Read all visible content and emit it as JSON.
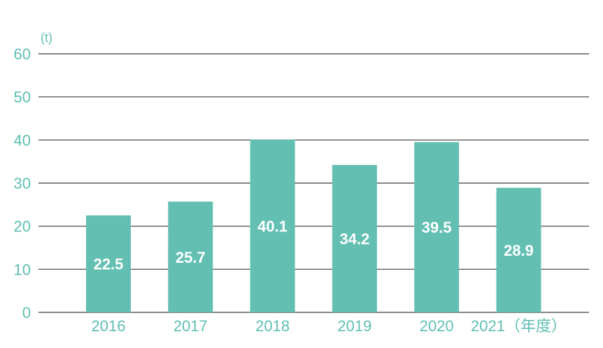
{
  "chart_data": {
    "type": "bar",
    "title": "",
    "xlabel": "",
    "ylabel": "(t)",
    "categories": [
      "2016",
      "2017",
      "2018",
      "2019",
      "2020",
      "2021（年度）"
    ],
    "values": [
      22.5,
      25.7,
      40.1,
      34.2,
      39.5,
      28.9
    ],
    "value_labels": [
      "22.5",
      "25.7",
      "40.1",
      "34.2",
      "39.5",
      "28.9"
    ],
    "ylim": [
      0,
      60
    ],
    "yticks": [
      0,
      10,
      20,
      30,
      40,
      50,
      60
    ],
    "ytick_labels": [
      "0",
      "10",
      "20",
      "30",
      "40",
      "50",
      "60"
    ],
    "grid": true,
    "legend": "none"
  },
  "colors": {
    "bar": "#63bfb2",
    "axis_text": "#5fbfb3",
    "gridline": "#3a3a3a",
    "data_label": "#ffffff"
  }
}
